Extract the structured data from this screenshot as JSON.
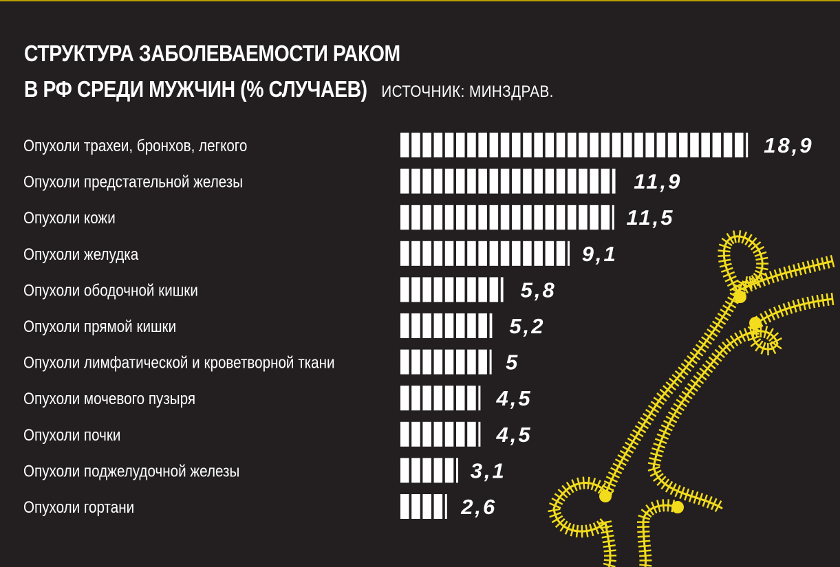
{
  "header": {
    "title_line1": "СТРУКТУРА ЗАБОЛЕВАЕМОСТИ РАКОМ",
    "title_line2": "В РФ СРЕДИ МУЖЧИН (% СЛУЧАЕВ)",
    "source": "ИСТОЧНИК: МИНЗДРАВ."
  },
  "colors": {
    "background": "#231f20",
    "bars": "#ffffff",
    "decoration": "#f2dc1c"
  },
  "chart_data": {
    "type": "bar",
    "orientation": "horizontal",
    "title": "СТРУКТУРА ЗАБОЛЕВАЕМОСТИ РАКОМ В РФ СРЕДИ МУЖЧИН (% СЛУЧАЕВ)",
    "categories": [
      "Опухоли трахеи, бронхов, легкого",
      "Опухоли предстательной железы",
      "Опухоли кожи",
      "Опухоли желудка",
      "Опухоли ободочной кишки",
      "Опухоли прямой кишки",
      "Опухоли лимфатической и кроветворной ткани",
      "Опухоли мочевого пузыря",
      "Опухоли почки",
      "Опухоли поджелудочной железы",
      "Опухоли гортани"
    ],
    "values": [
      18.9,
      11.9,
      11.5,
      9.1,
      5.8,
      5.2,
      5,
      4.5,
      4.5,
      3.1,
      2.6
    ],
    "value_labels": [
      "18,9",
      "11,9",
      "11,5",
      "9,1",
      "5,8",
      "5,2",
      "5",
      "4,5",
      "4,5",
      "3,1",
      "2,6"
    ],
    "xlim": [
      0,
      19
    ],
    "grid": false,
    "legend": "none"
  }
}
